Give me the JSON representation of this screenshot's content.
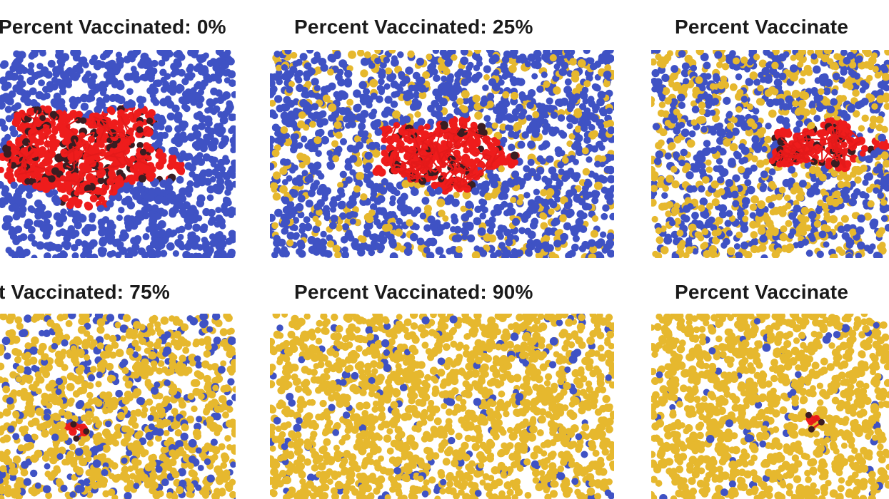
{
  "colors": {
    "susceptible": "#3f52c4",
    "vaccinated": "#e6b82e",
    "infected": "#ee1c1c",
    "recovered": "#3a1d22",
    "edge": "#e41a1a"
  },
  "chart_data": [
    {
      "type": "scatter",
      "title": "Percent Vaccinated: 0%",
      "percent_vaccinated": 0,
      "infected_cluster_size": "large",
      "series": [
        {
          "name": "",
          "color": "#3f52c4"
        },
        {
          "name": "",
          "color": "#e6b82e"
        },
        {
          "name": "",
          "color": "#ee1c1c"
        }
      ]
    },
    {
      "type": "scatter",
      "title": "Percent Vaccinated: 25%",
      "percent_vaccinated": 25,
      "infected_cluster_size": "medium",
      "series": [
        {
          "name": "",
          "color": "#3f52c4"
        },
        {
          "name": "",
          "color": "#e6b82e"
        },
        {
          "name": "",
          "color": "#ee1c1c"
        }
      ]
    },
    {
      "type": "scatter",
      "title": "Percent Vaccinate",
      "percent_vaccinated": 50,
      "infected_cluster_size": "small",
      "series": [
        {
          "name": "",
          "color": "#3f52c4"
        },
        {
          "name": "",
          "color": "#e6b82e"
        },
        {
          "name": "",
          "color": "#ee1c1c"
        }
      ]
    },
    {
      "type": "scatter",
      "title": "t Vaccinated: 75%",
      "percent_vaccinated": 75,
      "infected_cluster_size": "tiny",
      "series": [
        {
          "name": "",
          "color": "#3f52c4"
        },
        {
          "name": "",
          "color": "#e6b82e"
        },
        {
          "name": "",
          "color": "#ee1c1c"
        }
      ]
    },
    {
      "type": "scatter",
      "title": "Percent Vaccinated: 90%",
      "percent_vaccinated": 90,
      "infected_cluster_size": "none",
      "series": [
        {
          "name": "",
          "color": "#3f52c4"
        },
        {
          "name": "",
          "color": "#e6b82e"
        },
        {
          "name": "",
          "color": "#ee1c1c"
        }
      ]
    },
    {
      "type": "scatter",
      "title": "Percent Vaccinate",
      "percent_vaccinated": 95,
      "infected_cluster_size": "tiny",
      "series": [
        {
          "name": "",
          "color": "#3f52c4"
        },
        {
          "name": "",
          "color": "#e6b82e"
        },
        {
          "name": "",
          "color": "#ee1c1c"
        }
      ]
    }
  ]
}
